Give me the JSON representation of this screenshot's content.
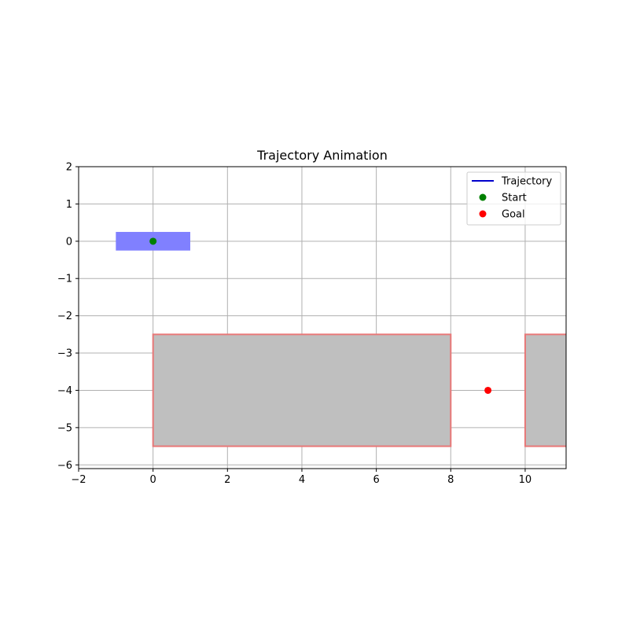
{
  "chart_data": {
    "type": "line",
    "title": "Trajectory Animation",
    "xlabel": "",
    "ylabel": "",
    "xlim": [
      -2,
      11.1
    ],
    "ylim": [
      -6.1,
      2
    ],
    "x_ticks": [
      -2,
      0,
      2,
      4,
      6,
      8,
      10
    ],
    "x_tick_labels": [
      "−2",
      "0",
      "2",
      "4",
      "6",
      "8",
      "10"
    ],
    "y_ticks": [
      2,
      1,
      0,
      -1,
      -2,
      -3,
      -4,
      -5,
      -6
    ],
    "y_tick_labels": [
      "2",
      "1",
      "0",
      "−1",
      "−2",
      "−3",
      "−4",
      "−5",
      "−6"
    ],
    "grid": true,
    "legend_position": "top-right",
    "obstacles": [
      {
        "x0": 0,
        "x1": 8,
        "y0": -5.5,
        "y1": -2.5,
        "fill": "#bfbfbf",
        "edge": "#e87878"
      },
      {
        "x0": 10,
        "x1": 12,
        "y0": -5.5,
        "y1": -2.5,
        "fill": "#bfbfbf",
        "edge": "#e87878"
      }
    ],
    "robot": {
      "x0": -1,
      "x1": 1,
      "y0": -0.25,
      "y1": 0.25,
      "color": "#8080ff"
    },
    "series": [
      {
        "name": "Trajectory",
        "kind": "line",
        "color": "#0000cc",
        "points": []
      },
      {
        "name": "Start",
        "kind": "marker",
        "color": "#008000",
        "points": [
          [
            0,
            0
          ]
        ]
      },
      {
        "name": "Goal",
        "kind": "marker",
        "color": "#ff0000",
        "points": [
          [
            9,
            -4
          ]
        ]
      }
    ]
  }
}
